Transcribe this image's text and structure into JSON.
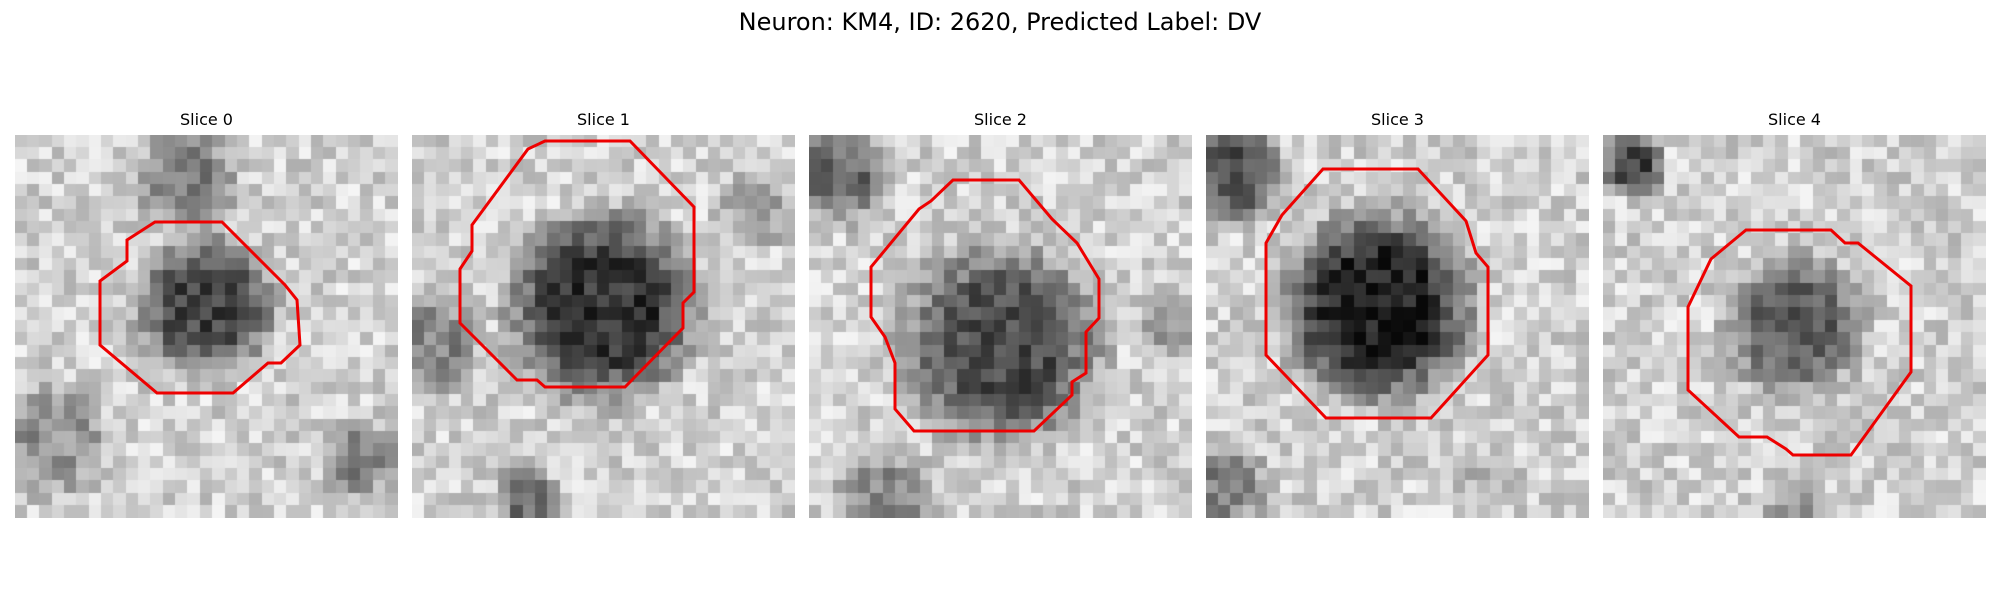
{
  "figure": {
    "title": "Neuron: KM4, ID: 2620, Predicted Label: DV"
  },
  "colors": {
    "background": "#ffffff",
    "roi_outline": "#ee0000",
    "colormap": "grayscale"
  },
  "panels": [
    {
      "title": "Slice 0",
      "image": "grayscale-microscopy-slice",
      "overlay": "red-roi-outline"
    },
    {
      "title": "Slice 1",
      "image": "grayscale-microscopy-slice",
      "overlay": "red-roi-outline"
    },
    {
      "title": "Slice 2",
      "image": "grayscale-microscopy-slice",
      "overlay": "red-roi-outline"
    },
    {
      "title": "Slice 3",
      "image": "grayscale-microscopy-slice",
      "overlay": "red-roi-outline"
    },
    {
      "title": "Slice 4",
      "image": "grayscale-microscopy-slice",
      "overlay": "red-roi-outline"
    }
  ]
}
